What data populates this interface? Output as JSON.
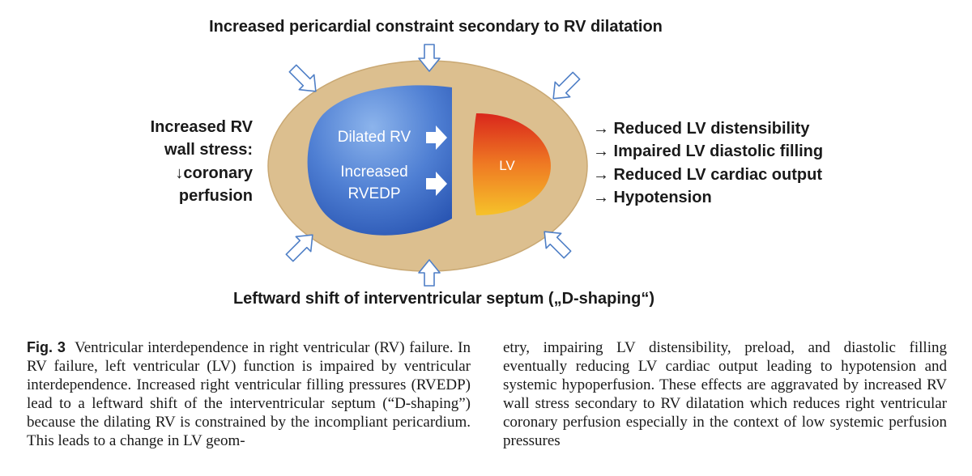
{
  "diagram": {
    "top_label": "Increased pericardial constraint secondary to RV dilatation",
    "bottom_label": "Leftward shift of interventricular septum („D-shaping“)",
    "left_text": [
      "Increased RV",
      "wall stress:",
      "↓coronary",
      "perfusion"
    ],
    "rv_label_1": "Dilated RV",
    "rv_label_2a": "Increased",
    "rv_label_2b": "RVEDP",
    "lv_label": "LV",
    "right_effects": [
      "→ Reduced LV distensibility",
      "→ Impaired LV diastolic filling",
      "→ Reduced LV cardiac output",
      "→ Hypotension"
    ],
    "colors": {
      "pericardium": "#dcbf8f",
      "pericardium_edge": "#c9a873",
      "rv_light": "#8cb4ec",
      "rv_dark": "#2a56b3",
      "lv_top": "#d9261c",
      "lv_bottom": "#f6c22a",
      "arrow_stroke": "#4f7fc6"
    }
  },
  "caption": {
    "fig_label": "Fig. 3",
    "left": "Ventricular interdependence in right ventricular (RV) failure. In RV failure, left ventricular (LV) function is impaired by ventricular interdependence. Increased right ventricular filling pressures (RVEDP) lead to a leftward shift of the interventricular septum (“D-shaping”) because the dilating RV is constrained by the incompliant pericardium. This leads to a change in LV geom-",
    "right": "etry, impairing LV distensibility, preload, and diastolic filling eventually reducing LV cardiac output leading to hypotension and systemic hypoperfusion. These effects are aggravated by increased RV wall stress secondary to RV dilatation which reduces right ventricular coronary perfusion especially in the context of low systemic perfusion pressures"
  }
}
